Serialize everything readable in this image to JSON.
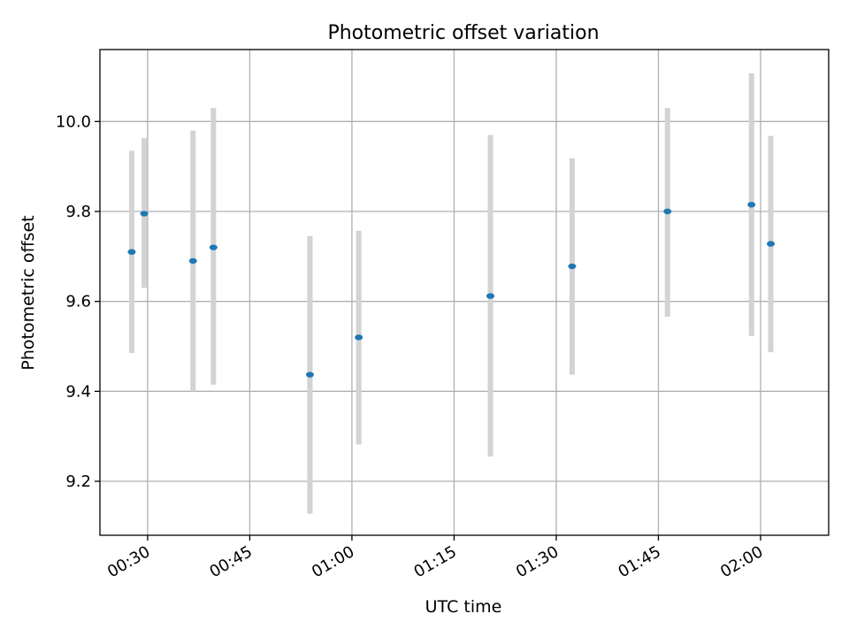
{
  "chart_data": {
    "type": "scatter",
    "title": "Photometric offset variation",
    "xlabel": "UTC time",
    "ylabel": "Photometric offset",
    "x_ticks": [
      "00:30",
      "00:45",
      "01:00",
      "01:15",
      "01:30",
      "01:45",
      "02:00"
    ],
    "y_ticks": [
      "9.2",
      "9.4",
      "9.6",
      "9.8",
      "10.0"
    ],
    "xlim": [
      "00:23",
      "02:10"
    ],
    "ylim": [
      9.08,
      10.16
    ],
    "grid": true,
    "error_bars": true,
    "points": [
      {
        "x": "00:27:40",
        "y": 9.71,
        "err_low": 9.485,
        "err_high": 9.935
      },
      {
        "x": "00:29:30",
        "y": 9.795,
        "err_low": 9.63,
        "err_high": 9.963
      },
      {
        "x": "00:36:40",
        "y": 9.69,
        "err_low": 9.4,
        "err_high": 9.98
      },
      {
        "x": "00:39:40",
        "y": 9.72,
        "err_low": 9.415,
        "err_high": 10.03
      },
      {
        "x": "00:53:50",
        "y": 9.437,
        "err_low": 9.128,
        "err_high": 9.745
      },
      {
        "x": "01:01:00",
        "y": 9.52,
        "err_low": 9.282,
        "err_high": 9.757
      },
      {
        "x": "01:20:20",
        "y": 9.612,
        "err_low": 9.255,
        "err_high": 9.97
      },
      {
        "x": "01:32:20",
        "y": 9.678,
        "err_low": 9.437,
        "err_high": 9.918
      },
      {
        "x": "01:46:20",
        "y": 9.8,
        "err_low": 9.566,
        "err_high": 10.03
      },
      {
        "x": "01:58:40",
        "y": 9.815,
        "err_low": 9.523,
        "err_high": 10.107
      },
      {
        "x": "02:01:30",
        "y": 9.728,
        "err_low": 9.487,
        "err_high": 9.968
      }
    ],
    "colors": {
      "marker": "#1f77b4",
      "errorbar": "#d3d3d3",
      "grid": "#b0b0b0",
      "axes": "#000000"
    }
  }
}
